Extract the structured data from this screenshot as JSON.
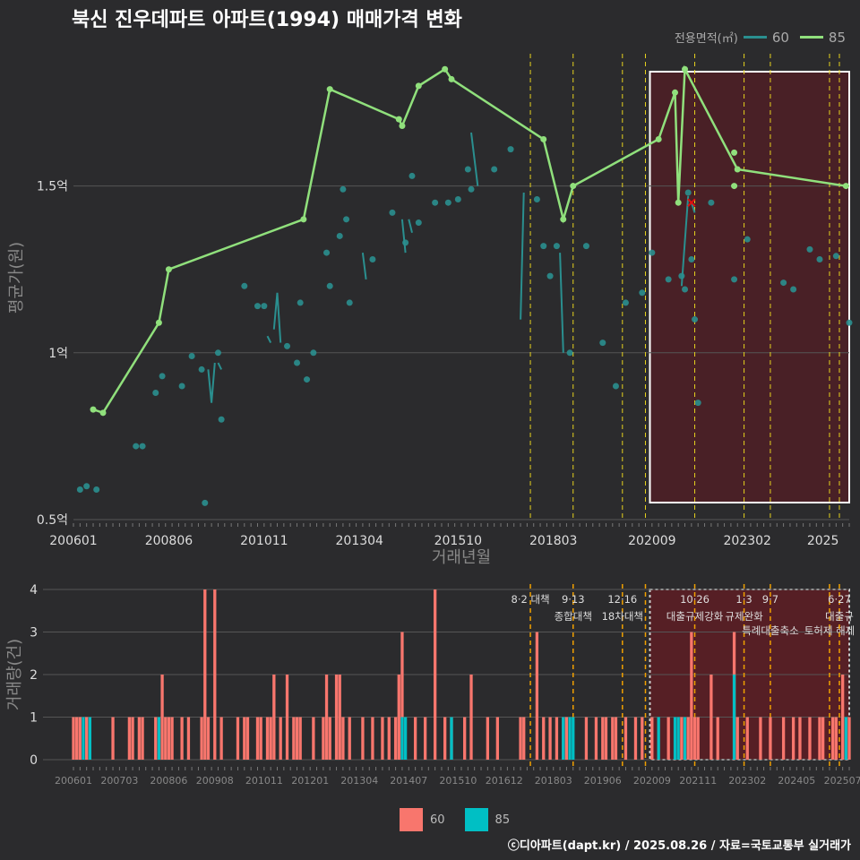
{
  "title": "북신 진우데파트 아파트(1994) 매매가격 변화",
  "legend": {
    "title": "전용면적(㎡)",
    "items": [
      {
        "label": "60",
        "color": "#2a8f8f"
      },
      {
        "label": "85",
        "color": "#90e07c"
      }
    ]
  },
  "volume_legend": [
    {
      "label": "60",
      "color": "#f8766d"
    },
    {
      "label": "85",
      "color": "#00bfc4"
    }
  ],
  "credit": "ⓒ디아파트(dapt.kr) / 2025.08.26 / 자료=국토교통부 실거래가",
  "chart_data": [
    {
      "type": "line",
      "name": "price",
      "xlabel": "거래년월",
      "ylabel": "평균가(원)",
      "x_ticks": [
        "200601",
        "200806",
        "201011",
        "201304",
        "201510",
        "201803",
        "202009",
        "202302",
        "2025"
      ],
      "y_ticks": [
        {
          "v": 0.5,
          "label": "0.5억"
        },
        {
          "v": 1.0,
          "label": "1억"
        },
        {
          "v": 1.5,
          "label": "1.5억"
        }
      ],
      "ylim": [
        0.5,
        1.95
      ],
      "xlim": [
        "2006-01",
        "2025-09"
      ],
      "series": [
        {
          "name": "85",
          "color": "#90e07c",
          "points": [
            [
              "2006-07",
              0.83
            ],
            [
              "2006-10",
              0.82
            ],
            [
              "2008-03",
              1.09
            ],
            [
              "2008-06",
              1.25
            ],
            [
              "2011-11",
              1.4
            ],
            [
              "2012-07",
              1.79
            ],
            [
              "2014-04",
              1.7
            ],
            [
              "2014-05",
              1.68
            ],
            [
              "2014-10",
              1.8
            ],
            [
              "2015-06",
              1.85
            ],
            [
              "2015-08",
              1.82
            ],
            [
              "2017-12",
              1.64
            ],
            [
              "2018-06",
              1.4
            ],
            [
              "2018-09",
              1.5
            ],
            [
              "2020-11",
              1.64
            ],
            [
              "2021-04",
              1.78
            ],
            [
              "2021-05",
              1.45
            ],
            [
              "2021-07",
              1.85
            ],
            [
              "2022-11",
              1.55
            ],
            [
              "2025-08",
              1.5
            ]
          ],
          "extra_points": [
            [
              "2022-10",
              1.6
            ],
            [
              "2022-10",
              1.5
            ]
          ]
        },
        {
          "name": "60",
          "color": "#2a8f8f",
          "segments": [
            [
              [
                "2009-06",
                0.95
              ],
              [
                "2009-07",
                0.85
              ],
              [
                "2009-08",
                0.97
              ]
            ],
            [
              [
                "2009-09",
                0.97
              ],
              [
                "2009-10",
                0.95
              ]
            ],
            [
              [
                "2010-12",
                1.05
              ],
              [
                "2011-01",
                1.03
              ]
            ],
            [
              [
                "2011-02",
                1.07
              ],
              [
                "2011-03",
                1.18
              ],
              [
                "2011-04",
                1.03
              ]
            ],
            [
              [
                "2013-05",
                1.3
              ],
              [
                "2013-06",
                1.22
              ]
            ],
            [
              [
                "2014-05",
                1.4
              ],
              [
                "2014-06",
                1.3
              ]
            ],
            [
              [
                "2014-07",
                1.4
              ],
              [
                "2014-08",
                1.36
              ]
            ],
            [
              [
                "2016-02",
                1.66
              ],
              [
                "2016-04",
                1.5
              ]
            ],
            [
              [
                "2017-05",
                1.1
              ],
              [
                "2017-06",
                1.48
              ]
            ],
            [
              [
                "2018-05",
                1.3
              ],
              [
                "2018-06",
                1.0
              ]
            ],
            [
              [
                "2021-06",
                1.2
              ],
              [
                "2021-08",
                1.47
              ]
            ],
            [
              [
                "2021-09",
                1.45
              ],
              [
                "2021-10",
                1.42
              ]
            ]
          ],
          "points": [
            [
              "2006-03",
              0.59
            ],
            [
              "2006-05",
              0.6
            ],
            [
              "2006-08",
              0.59
            ],
            [
              "2007-08",
              0.72
            ],
            [
              "2007-10",
              0.72
            ],
            [
              "2008-02",
              0.88
            ],
            [
              "2008-04",
              0.93
            ],
            [
              "2008-10",
              0.9
            ],
            [
              "2009-01",
              0.99
            ],
            [
              "2009-04",
              0.95
            ],
            [
              "2009-05",
              0.55
            ],
            [
              "2009-09",
              1.0
            ],
            [
              "2009-10",
              0.8
            ],
            [
              "2010-05",
              1.2
            ],
            [
              "2010-09",
              1.14
            ],
            [
              "2010-11",
              1.14
            ],
            [
              "2011-06",
              1.02
            ],
            [
              "2011-09",
              0.97
            ],
            [
              "2011-10",
              1.15
            ],
            [
              "2011-12",
              0.92
            ],
            [
              "2012-02",
              1.0
            ],
            [
              "2012-06",
              1.3
            ],
            [
              "2012-07",
              1.2
            ],
            [
              "2012-10",
              1.35
            ],
            [
              "2012-11",
              1.49
            ],
            [
              "2012-12",
              1.4
            ],
            [
              "2013-01",
              1.15
            ],
            [
              "2013-08",
              1.28
            ],
            [
              "2014-02",
              1.42
            ],
            [
              "2014-06",
              1.33
            ],
            [
              "2014-08",
              1.53
            ],
            [
              "2014-10",
              1.39
            ],
            [
              "2015-03",
              1.45
            ],
            [
              "2015-07",
              1.45
            ],
            [
              "2015-10",
              1.46
            ],
            [
              "2016-01",
              1.55
            ],
            [
              "2016-02",
              1.49
            ],
            [
              "2016-09",
              1.55
            ],
            [
              "2017-02",
              1.61
            ],
            [
              "2017-10",
              1.46
            ],
            [
              "2017-12",
              1.32
            ],
            [
              "2018-02",
              1.23
            ],
            [
              "2018-04",
              1.32
            ],
            [
              "2018-08",
              1.0
            ],
            [
              "2019-01",
              1.32
            ],
            [
              "2019-06",
              1.03
            ],
            [
              "2019-10",
              0.9
            ],
            [
              "2020-01",
              1.15
            ],
            [
              "2020-06",
              1.18
            ],
            [
              "2020-09",
              1.3
            ],
            [
              "2021-02",
              1.22
            ],
            [
              "2021-06",
              1.23
            ],
            [
              "2021-07",
              1.19
            ],
            [
              "2021-08",
              1.48
            ],
            [
              "2021-09",
              1.28
            ],
            [
              "2021-10",
              1.1
            ],
            [
              "2021-11",
              0.85
            ],
            [
              "2022-03",
              1.45
            ],
            [
              "2022-10",
              1.22
            ],
            [
              "2023-02",
              1.34
            ],
            [
              "2024-01",
              1.21
            ],
            [
              "2024-04",
              1.19
            ],
            [
              "2024-09",
              1.31
            ],
            [
              "2024-12",
              1.28
            ],
            [
              "2025-05",
              1.29
            ],
            [
              "2025-09",
              1.09
            ]
          ]
        }
      ],
      "marker": [
        "2021-09",
        1.45
      ]
    },
    {
      "type": "bar",
      "name": "volume",
      "ylabel": "거래량(건)",
      "y_ticks": [
        0,
        1,
        2,
        3,
        4
      ],
      "ylim": [
        0,
        4
      ],
      "x_ticks": [
        "200601",
        "200703",
        "200806",
        "200908",
        "201011",
        "201201",
        "201304",
        "201407",
        "201510",
        "201612",
        "201803",
        "201906",
        "202009",
        "202111",
        "202302",
        "202405",
        "202507"
      ],
      "series": [
        {
          "name": "60",
          "color": "#f8766d",
          "bars": [
            [
              "2006-01",
              1
            ],
            [
              "2006-02",
              1
            ],
            [
              "2006-03",
              1
            ],
            [
              "2006-05",
              1
            ],
            [
              "2007-01",
              1
            ],
            [
              "2007-06",
              1
            ],
            [
              "2007-07",
              1
            ],
            [
              "2007-09",
              1
            ],
            [
              "2007-10",
              1
            ],
            [
              "2008-02",
              1
            ],
            [
              "2008-04",
              2
            ],
            [
              "2008-05",
              1
            ],
            [
              "2008-06",
              1
            ],
            [
              "2008-07",
              1
            ],
            [
              "2008-10",
              1
            ],
            [
              "2008-12",
              1
            ],
            [
              "2009-04",
              1
            ],
            [
              "2009-05",
              4
            ],
            [
              "2009-06",
              1
            ],
            [
              "2009-08",
              4
            ],
            [
              "2009-10",
              1
            ],
            [
              "2010-03",
              1
            ],
            [
              "2010-05",
              1
            ],
            [
              "2010-06",
              1
            ],
            [
              "2010-09",
              1
            ],
            [
              "2010-10",
              1
            ],
            [
              "2010-12",
              1
            ],
            [
              "2011-01",
              1
            ],
            [
              "2011-02",
              2
            ],
            [
              "2011-04",
              1
            ],
            [
              "2011-06",
              2
            ],
            [
              "2011-08",
              1
            ],
            [
              "2011-09",
              1
            ],
            [
              "2011-10",
              1
            ],
            [
              "2012-02",
              1
            ],
            [
              "2012-05",
              1
            ],
            [
              "2012-06",
              2
            ],
            [
              "2012-07",
              1
            ],
            [
              "2012-09",
              2
            ],
            [
              "2012-10",
              2
            ],
            [
              "2012-11",
              1
            ],
            [
              "2013-01",
              1
            ],
            [
              "2013-05",
              1
            ],
            [
              "2013-08",
              1
            ],
            [
              "2013-11",
              1
            ],
            [
              "2014-01",
              1
            ],
            [
              "2014-03",
              1
            ],
            [
              "2014-04",
              2
            ],
            [
              "2014-05",
              3
            ],
            [
              "2014-09",
              1
            ],
            [
              "2014-12",
              1
            ],
            [
              "2015-03",
              4
            ],
            [
              "2015-06",
              1
            ],
            [
              "2015-08",
              1
            ],
            [
              "2015-12",
              1
            ],
            [
              "2016-02",
              2
            ],
            [
              "2016-07",
              1
            ],
            [
              "2016-10",
              1
            ],
            [
              "2017-05",
              1
            ],
            [
              "2017-06",
              1
            ],
            [
              "2017-10",
              3
            ],
            [
              "2017-12",
              1
            ],
            [
              "2018-02",
              1
            ],
            [
              "2018-04",
              1
            ],
            [
              "2018-06",
              1
            ],
            [
              "2018-07",
              1
            ],
            [
              "2019-01",
              1
            ],
            [
              "2019-04",
              1
            ],
            [
              "2019-06",
              1
            ],
            [
              "2019-07",
              1
            ],
            [
              "2019-09",
              1
            ],
            [
              "2019-10",
              1
            ],
            [
              "2020-01",
              1
            ],
            [
              "2020-04",
              1
            ],
            [
              "2020-06",
              1
            ],
            [
              "2020-09",
              1
            ],
            [
              "2021-02",
              1
            ],
            [
              "2021-06",
              1
            ],
            [
              "2021-08",
              1
            ],
            [
              "2021-09",
              3
            ],
            [
              "2021-10",
              1
            ],
            [
              "2021-11",
              1
            ],
            [
              "2022-03",
              2
            ],
            [
              "2022-05",
              1
            ],
            [
              "2022-10",
              3
            ],
            [
              "2022-11",
              1
            ],
            [
              "2023-02",
              1
            ],
            [
              "2023-06",
              1
            ],
            [
              "2023-09",
              1
            ],
            [
              "2024-01",
              1
            ],
            [
              "2024-04",
              1
            ],
            [
              "2024-06",
              1
            ],
            [
              "2024-09",
              1
            ],
            [
              "2024-12",
              1
            ],
            [
              "2025-01",
              1
            ],
            [
              "2025-04",
              1
            ],
            [
              "2025-05",
              1
            ],
            [
              "2025-07",
              2
            ],
            [
              "2025-09",
              1
            ]
          ]
        },
        {
          "name": "85",
          "color": "#00bfc4",
          "bars": [
            [
              "2006-04",
              1
            ],
            [
              "2006-06",
              1
            ],
            [
              "2008-03",
              1
            ],
            [
              "2014-05",
              1
            ],
            [
              "2014-06",
              1
            ],
            [
              "2015-08",
              1
            ],
            [
              "2018-06",
              1
            ],
            [
              "2018-08",
              1
            ],
            [
              "2018-09",
              1
            ],
            [
              "2020-11",
              1
            ],
            [
              "2021-04",
              1
            ],
            [
              "2021-05",
              1
            ],
            [
              "2021-07",
              1
            ],
            [
              "2022-10",
              2
            ],
            [
              "2025-08",
              1
            ]
          ]
        }
      ]
    }
  ],
  "policy_lines": [
    {
      "date": "2017-08",
      "date_label": "8·2 대책",
      "text": ""
    },
    {
      "date": "2018-09",
      "date_label": "9·13",
      "text": "종합대책"
    },
    {
      "date": "2019-12",
      "date_label": "12·16",
      "text": "18차대책"
    },
    {
      "date": "2020-07",
      "date_label": "",
      "text": ""
    },
    {
      "date": "2021-10",
      "date_label": "10·26",
      "text": "대출규제강화"
    },
    {
      "date": "2023-01",
      "date_label": "1·3",
      "text": "규제완화"
    },
    {
      "date": "2023-09",
      "date_label": "9·7",
      "text": "특례대출축소"
    },
    {
      "date": "2025-03",
      "date_label": "",
      "text": "토허제 해제"
    },
    {
      "date": "2025-06",
      "date_label": "6·27",
      "text": "대출규"
    }
  ],
  "highlight": {
    "from": "2020-10",
    "to": "2025-09"
  }
}
